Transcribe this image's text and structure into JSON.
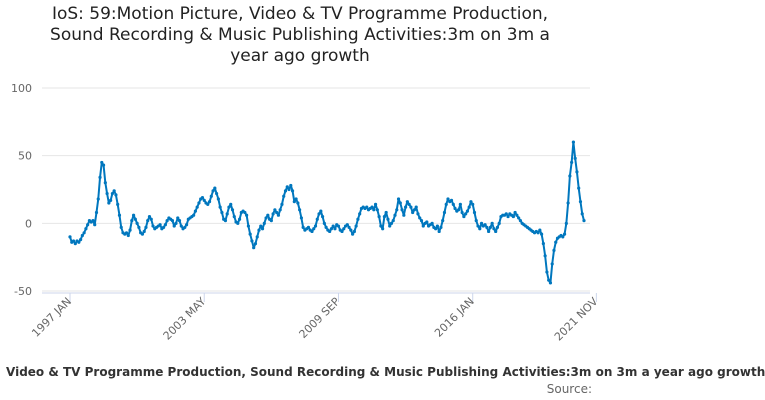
{
  "chart_data": {
    "type": "line",
    "title_lines": [
      "IoS: 59:Motion Picture, Video & TV Programme Production,",
      "Sound Recording & Music Publishing Activities:3m on 3m a",
      "year ago growth"
    ],
    "ylim": [
      -50,
      100
    ],
    "y_ticks": [
      "100",
      "50",
      "0",
      "-50"
    ],
    "y_tick_values": [
      100,
      50,
      0,
      -50
    ],
    "x_tick_labels": [
      "1997 JAN",
      "2003 MAY",
      "2009 SEP",
      "2016 JAN",
      "2021 NOV"
    ],
    "x_tick_index": [
      0,
      76,
      152,
      228,
      298
    ],
    "series": [
      {
        "name": "Video & TV Programme Production, Sound Recording & Music Publishing Activities:3m on 3m a year ago growth",
        "color": "#0077be",
        "start": "1997 JAN",
        "values": [
          -10,
          -14,
          -13,
          -15,
          -13,
          -14,
          -12,
          -9,
          -7,
          -4,
          -1,
          2,
          1,
          2,
          -1,
          8,
          18,
          34,
          45,
          43,
          30,
          22,
          15,
          17,
          22,
          24,
          21,
          14,
          6,
          -3,
          -7,
          -8,
          -7,
          -9,
          -5,
          2,
          6,
          3,
          0,
          -3,
          -7,
          -8,
          -6,
          -3,
          2,
          5,
          3,
          -2,
          -4,
          -3,
          -2,
          -1,
          -4,
          -3,
          -1,
          2,
          4,
          3,
          2,
          -2,
          0,
          4,
          2,
          -2,
          -4,
          -3,
          -1,
          3,
          4,
          5,
          6,
          9,
          12,
          15,
          18,
          19,
          17,
          15,
          14,
          16,
          20,
          24,
          26,
          22,
          18,
          12,
          8,
          3,
          2,
          7,
          12,
          14,
          10,
          5,
          1,
          0,
          3,
          8,
          9,
          8,
          6,
          -2,
          -8,
          -13,
          -18,
          -15,
          -10,
          -5,
          -2,
          -4,
          0,
          4,
          6,
          3,
          2,
          7,
          10,
          8,
          6,
          10,
          14,
          20,
          24,
          27,
          25,
          28,
          24,
          16,
          18,
          15,
          10,
          4,
          -3,
          -5,
          -4,
          -3,
          -5,
          -6,
          -4,
          -2,
          3,
          7,
          9,
          5,
          0,
          -3,
          -5,
          -6,
          -4,
          -2,
          -4,
          -1,
          -2,
          -5,
          -6,
          -4,
          -2,
          -1,
          -3,
          -5,
          -8,
          -6,
          -2,
          3,
          7,
          11,
          12,
          11,
          12,
          10,
          11,
          12,
          10,
          14,
          10,
          5,
          -2,
          -4,
          5,
          8,
          3,
          -2,
          0,
          2,
          6,
          10,
          18,
          15,
          10,
          6,
          12,
          16,
          14,
          12,
          8,
          10,
          12,
          7,
          4,
          2,
          -2,
          0,
          1,
          -2,
          -1,
          0,
          -3,
          -4,
          -2,
          -6,
          -3,
          2,
          8,
          14,
          18,
          16,
          17,
          14,
          11,
          9,
          10,
          14,
          8,
          5,
          7,
          9,
          12,
          16,
          14,
          8,
          2,
          -2,
          -4,
          0,
          -2,
          -1,
          -3,
          -6,
          -3,
          0,
          -4,
          -6,
          -3,
          0,
          5,
          6,
          6,
          7,
          5,
          7,
          6,
          5,
          8,
          6,
          4,
          2,
          0,
          -1,
          -2,
          -3,
          -4,
          -5,
          -6,
          -7,
          -6,
          -7,
          -5,
          -8,
          -15,
          -24,
          -36,
          -42,
          -44,
          -30,
          -20,
          -14,
          -11,
          -10,
          -9,
          -10,
          -8,
          0,
          15,
          35,
          45,
          60,
          48,
          38,
          26,
          16,
          7,
          2
        ]
      }
    ],
    "legend_text": "Video & TV Programme Production, Sound Recording & Music Publishing Activities:3m on 3m a year ago growth",
    "source_label": "Source:"
  }
}
